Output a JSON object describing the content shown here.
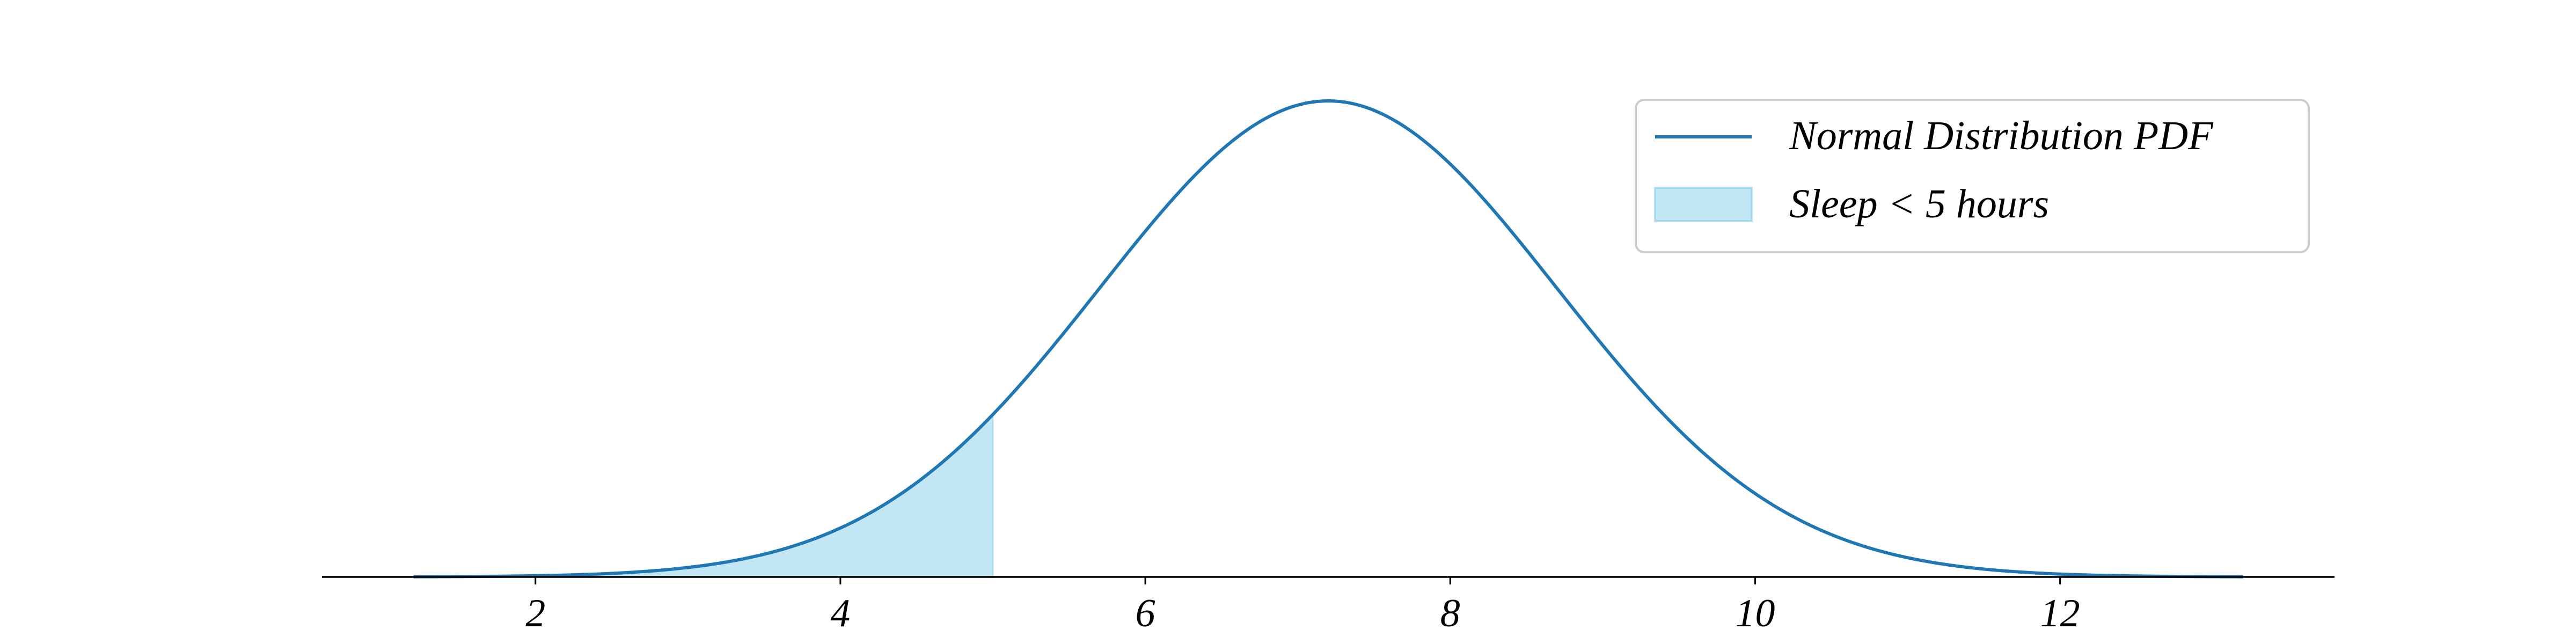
{
  "chart_data": {
    "type": "area",
    "title": "",
    "xlabel": "",
    "ylabel": "",
    "xlim": [
      0.6,
      13.8
    ],
    "x_ticks": [
      2,
      4,
      6,
      8,
      10,
      12
    ],
    "x_tick_labels": [
      "2",
      "4",
      "6",
      "8",
      "10",
      "12"
    ],
    "y_visible": false,
    "grid": false,
    "distribution": {
      "mean": 7.2,
      "std": 1.5
    },
    "curve_range": [
      1.2,
      13.2
    ],
    "shaded_region": {
      "from": 1.2,
      "to": 5.0
    },
    "series": [
      {
        "name": "Normal Distribution PDF",
        "kind": "line",
        "color": "#1f77b4"
      },
      {
        "name": "Sleep < 5 hours",
        "kind": "fill",
        "color": "#87ceeb"
      }
    ],
    "legend": {
      "placement": "top-right",
      "entries": [
        {
          "label": "Normal Distribution PDF",
          "kind": "line",
          "color": "#1f77b4"
        },
        {
          "label": "Sleep < 5 hours",
          "kind": "fill",
          "color": "#87ceeb"
        }
      ]
    }
  }
}
